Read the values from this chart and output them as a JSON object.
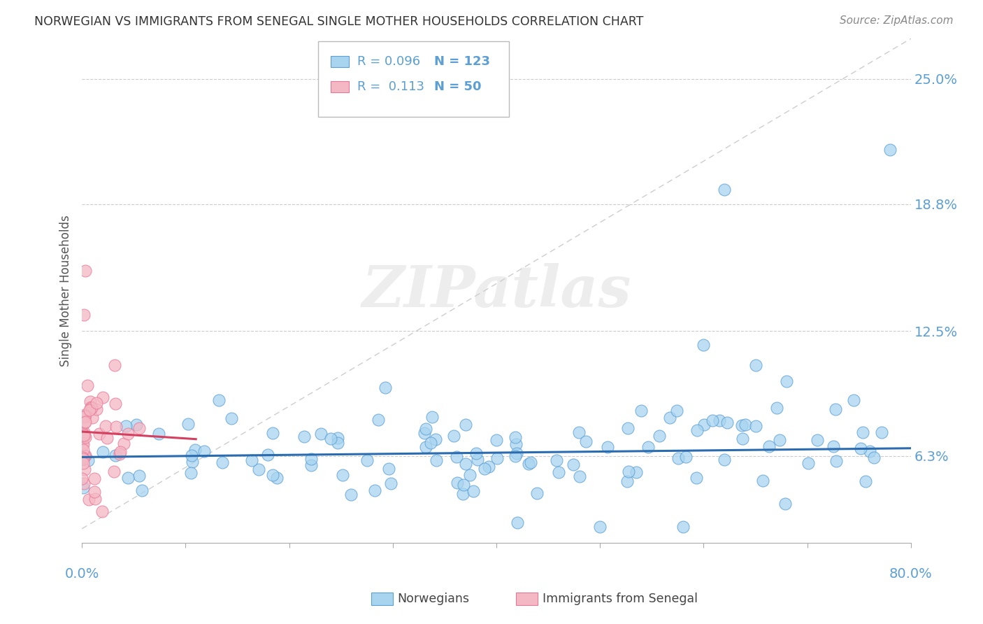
{
  "title": "NORWEGIAN VS IMMIGRANTS FROM SENEGAL SINGLE MOTHER HOUSEHOLDS CORRELATION CHART",
  "source": "Source: ZipAtlas.com",
  "ylabel": "Single Mother Households",
  "xlim": [
    0.0,
    0.8
  ],
  "ylim": [
    0.02,
    0.27
  ],
  "ytick_vals": [
    0.063,
    0.125,
    0.188,
    0.25
  ],
  "ytick_labels": [
    "6.3%",
    "12.5%",
    "18.8%",
    "25.0%"
  ],
  "watermark": "ZIPatlas",
  "legend_r1": "R = 0.096",
  "legend_n1": "N = 123",
  "legend_r2": "R =  0.113",
  "legend_n2": "N = 50",
  "color_norwegian": "#a8d4f0",
  "color_senegal": "#f4b8c4",
  "color_norwegian_edge": "#5b9fd4",
  "color_senegal_edge": "#e87898",
  "color_norwegian_line": "#2b6cb0",
  "color_senegal_line": "#d44060",
  "color_diag": "#c8c8c8",
  "color_ytick": "#5b9fd4",
  "color_xtick": "#5b9fd4",
  "background_color": "#ffffff",
  "title_color": "#333333",
  "source_color": "#888888",
  "legend_text_blue": "#5b9fd4",
  "legend_text_red": "#d44060"
}
